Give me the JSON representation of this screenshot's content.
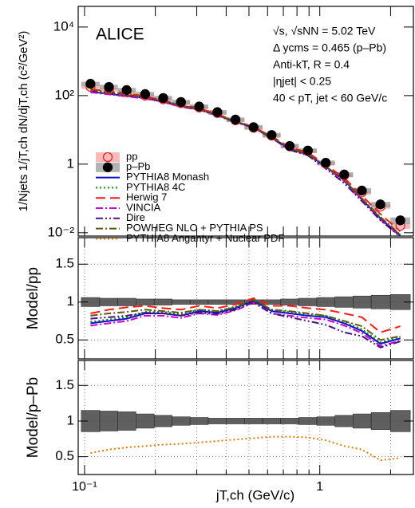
{
  "chart_data": [
    {
      "type": "line",
      "title": "ALICE",
      "annotations": [
        "√s, √sNN = 5.02 TeV",
        "Δ ycms = 0.465 (p–Pb)",
        "Anti-kT, R = 0.4",
        "|ηjet| < 0.25",
        "40 < pT, jet < 60 GeV/c"
      ],
      "ylabel": "1/Njets 1/jT,ch dN/djT,ch (c²/GeV²)",
      "log_x": true,
      "log_y": true,
      "legend": "lower left",
      "grid": false,
      "xlim": [
        0.094,
        2.5
      ],
      "xticks": [
        0.1,
        0.2,
        0.3,
        0.4,
        0.5,
        0.6,
        0.7,
        0.8,
        0.9,
        1,
        2
      ],
      "ylim": [
        0.008,
        40000
      ],
      "yticks": [
        {
          "value": 10000,
          "label": "10⁴"
        },
        {
          "value": 100,
          "label": "10²"
        },
        1,
        {
          "value": 0.01,
          "label": "10⁻²"
        }
      ],
      "x": [
        0.106,
        0.127,
        0.151,
        0.181,
        0.216,
        0.257,
        0.307,
        0.367,
        0.438,
        0.523,
        0.624,
        0.745,
        0.89,
        1.06,
        1.27,
        1.51,
        1.81,
        2.2
      ],
      "series": [
        {
          "name": "pp",
          "color": "#e8262a",
          "box_color": "#f4a3a3",
          "marker": "open-circle",
          "values": [
            180,
            150,
            125,
            100,
            78,
            60,
            45,
            31,
            19,
            11.5,
            6.8,
            3.3,
            2.4,
            1.05,
            0.47,
            0.15,
            0.058,
            0.016
          ],
          "errors": [
            22,
            18,
            15,
            12,
            9,
            7,
            5,
            3.7,
            2.3,
            1.4,
            0.8,
            0.4,
            0.3,
            0.13,
            0.06,
            0.02,
            0.008,
            0.003
          ]
        },
        {
          "name": "p–Pb",
          "color": "#000000",
          "box_color": "#9a9a9a",
          "marker": "filled-circle",
          "values": [
            221,
            179,
            145,
            111,
            85,
            65,
            48,
            33,
            20,
            12,
            7.1,
            3.4,
            2.5,
            1.1,
            0.5,
            0.17,
            0.067,
            0.023
          ],
          "errors": [
            33,
            27,
            22,
            17,
            13,
            10,
            7,
            5,
            3,
            1.8,
            1.1,
            0.5,
            0.38,
            0.17,
            0.08,
            0.03,
            0.012,
            0.005
          ]
        },
        {
          "name": "PYTHIA8 Monash",
          "color": "#1010d0",
          "style": "solid",
          "values": [
            130,
            112,
            97,
            85,
            66,
            49,
            40,
            27,
            17.5,
            11.7,
            6.0,
            2.8,
            2.0,
            0.84,
            0.34,
            0.093,
            0.026,
            0.0083
          ]
        },
        {
          "name": "PYTHIA8 4C",
          "color": "#0a8a0a",
          "style": "dotted",
          "values": [
            133,
            115,
            99,
            87,
            68,
            50,
            41,
            28,
            18,
            12,
            6.1,
            2.9,
            2.0,
            0.86,
            0.35,
            0.095,
            0.027,
            0.0086
          ]
        },
        {
          "name": "Herwig 7",
          "color": "#ff1a1a",
          "style": "dashed",
          "values": [
            153,
            135,
            116,
            95,
            72,
            54,
            43,
            28.5,
            18.4,
            12.1,
            6.5,
            3.1,
            2.2,
            0.95,
            0.4,
            0.12,
            0.035,
            0.011
          ]
        },
        {
          "name": "VINCIA",
          "color": "#c800d8",
          "style": "dashdot",
          "values": [
            125,
            108,
            94,
            82,
            64,
            47,
            38.5,
            26,
            17,
            11.4,
            5.8,
            2.7,
            1.9,
            0.81,
            0.32,
            0.088,
            0.024,
            0.0078
          ]
        },
        {
          "name": "Dire",
          "color": "#4b1082",
          "style": "dashdotdot",
          "values": [
            140,
            120,
            102,
            86,
            66,
            49,
            39,
            26,
            17,
            11.5,
            5.8,
            2.6,
            1.8,
            0.74,
            0.28,
            0.083,
            0.023,
            0.0077
          ]
        },
        {
          "name": "POWHEG NLO + PYTHIA PS",
          "color": "#5a5a0a",
          "style": "dashdot",
          "values": [
            148,
            128,
            109,
            90,
            69,
            52,
            40.5,
            27,
            17.7,
            11.8,
            6.1,
            2.9,
            2.0,
            0.86,
            0.35,
            0.1,
            0.029,
            0.0088
          ]
        }
      ]
    },
    {
      "type": "ratio",
      "ylabel": "Model/pp",
      "log_x": true,
      "grid": true,
      "reference": 1,
      "xlim": [
        0.094,
        2.5
      ],
      "xticks": [
        0.1,
        0.2,
        0.3,
        0.4,
        0.5,
        0.6,
        0.7,
        0.8,
        0.9,
        1,
        2
      ],
      "ylim": [
        0.25,
        1.85
      ],
      "yticks": [
        0.5,
        1,
        1.5
      ],
      "x": [
        0.106,
        0.127,
        0.151,
        0.181,
        0.216,
        0.257,
        0.307,
        0.367,
        0.438,
        0.523,
        0.624,
        0.745,
        0.89,
        1.06,
        1.27,
        1.51,
        1.81,
        2.2
      ],
      "band": [
        0.06,
        0.05,
        0.05,
        0.04,
        0.04,
        0.03,
        0.03,
        0.03,
        0.03,
        0.03,
        0.03,
        0.04,
        0.05,
        0.06,
        0.07,
        0.08,
        0.09,
        0.1
      ],
      "series": [
        {
          "color": "#1010d0",
          "style": "solid",
          "values": [
            0.72,
            0.75,
            0.78,
            0.85,
            0.85,
            0.82,
            0.88,
            0.86,
            0.92,
            1.02,
            0.88,
            0.85,
            0.82,
            0.8,
            0.72,
            0.62,
            0.45,
            0.52
          ]
        },
        {
          "color": "#0a8a0a",
          "style": "dotted",
          "values": [
            0.74,
            0.77,
            0.8,
            0.87,
            0.87,
            0.84,
            0.9,
            0.88,
            0.94,
            1.04,
            0.9,
            0.87,
            0.84,
            0.82,
            0.74,
            0.64,
            0.47,
            0.54
          ]
        },
        {
          "color": "#ff1a1a",
          "style": "dashed",
          "values": [
            0.85,
            0.9,
            0.93,
            0.95,
            0.92,
            0.9,
            0.95,
            0.92,
            0.97,
            1.05,
            0.95,
            0.95,
            0.92,
            0.9,
            0.85,
            0.8,
            0.6,
            0.68
          ]
        },
        {
          "color": "#c800d8",
          "style": "dashdot",
          "values": [
            0.69,
            0.72,
            0.75,
            0.82,
            0.82,
            0.79,
            0.85,
            0.83,
            0.89,
            0.99,
            0.85,
            0.82,
            0.79,
            0.77,
            0.69,
            0.59,
            0.42,
            0.49
          ]
        },
        {
          "color": "#4b1082",
          "style": "dashdotdot",
          "values": [
            0.78,
            0.8,
            0.82,
            0.86,
            0.85,
            0.82,
            0.86,
            0.84,
            0.9,
            1.0,
            0.85,
            0.8,
            0.75,
            0.7,
            0.6,
            0.55,
            0.4,
            0.48
          ]
        },
        {
          "color": "#5a5a0a",
          "style": "dashdot",
          "values": [
            0.82,
            0.85,
            0.87,
            0.9,
            0.88,
            0.86,
            0.9,
            0.88,
            0.93,
            1.03,
            0.9,
            0.88,
            0.85,
            0.82,
            0.75,
            0.68,
            0.5,
            0.55
          ]
        }
      ]
    },
    {
      "type": "ratio",
      "ylabel": "Model/p–Pb",
      "xlabel": "jT,ch (GeV/c)",
      "log_x": true,
      "grid": true,
      "reference": 1,
      "xlim": [
        0.094,
        2.5
      ],
      "xticks": [
        {
          "value": 0.1,
          "label": "10⁻¹"
        },
        1
      ],
      "xminorticks": [
        0.2,
        0.3,
        0.4,
        0.5,
        0.6,
        0.7,
        0.8,
        0.9,
        2
      ],
      "ylim": [
        0.25,
        1.85
      ],
      "yticks": [
        0.5,
        1,
        1.5
      ],
      "x": [
        0.106,
        0.127,
        0.151,
        0.181,
        0.216,
        0.257,
        0.307,
        0.367,
        0.438,
        0.523,
        0.624,
        0.745,
        0.89,
        1.06,
        1.27,
        1.51,
        1.81,
        2.2
      ],
      "band": [
        0.15,
        0.14,
        0.13,
        0.1,
        0.08,
        0.06,
        0.05,
        0.04,
        0.04,
        0.04,
        0.04,
        0.04,
        0.05,
        0.06,
        0.08,
        0.1,
        0.12,
        0.15
      ],
      "series": [
        {
          "name": "PYTHIA8 Angantyr + Nuclear PDF",
          "color": "#e07b00",
          "style": "dotted",
          "values": [
            0.55,
            0.6,
            0.63,
            0.65,
            0.67,
            0.68,
            0.7,
            0.72,
            0.74,
            0.76,
            0.78,
            0.78,
            0.77,
            0.73,
            0.65,
            0.6,
            0.45,
            0.48
          ]
        }
      ]
    }
  ]
}
